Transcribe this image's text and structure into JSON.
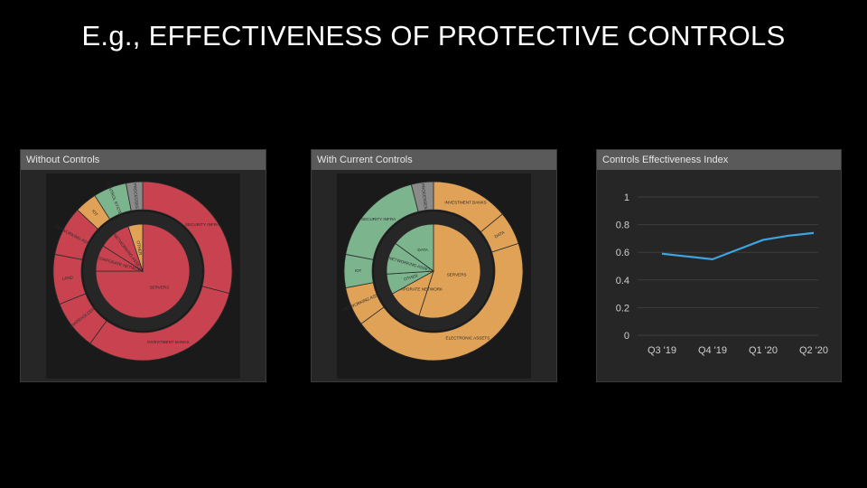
{
  "slide": {
    "title": "E.g., EFFECTIVENESS OF PROTECTIVE CONTROLS"
  },
  "colors": {
    "red": "#c8434f",
    "orange": "#e0a257",
    "green": "#7cb58d",
    "gray": "#8a8a8a",
    "line": "#3ea3e0"
  },
  "panels": [
    {
      "header": "Without Controls"
    },
    {
      "header": "With Current Controls"
    },
    {
      "header": "Controls Effectiveness Index"
    }
  ],
  "chart_data": [
    {
      "type": "pie",
      "title": "Without Controls",
      "outer": [
        {
          "label": "SECURITY INFRA",
          "value": 29,
          "color": "red"
        },
        {
          "label": "INVESTMENT BANKS",
          "value": 31,
          "color": "red"
        },
        {
          "label": "SHAREHOLDERS",
          "value": 9,
          "color": "red"
        },
        {
          "label": "LAND",
          "value": 9,
          "color": "red"
        },
        {
          "label": "NETWORKING ASSETS",
          "value": 9,
          "color": "red"
        },
        {
          "label": "IOT",
          "value": 4,
          "color": "orange"
        },
        {
          "label": "CONTROL SYSTEMS",
          "value": 6,
          "color": "green"
        },
        {
          "label": "PROCESSES",
          "value": 3,
          "color": "gray"
        }
      ],
      "inner": [
        {
          "label": "SERVERS",
          "value": 75,
          "color": "red"
        },
        {
          "label": "CORPORATE NETWORK",
          "value": 9,
          "color": "red"
        },
        {
          "label": "NETWORKING ASSETS",
          "value": 11,
          "color": "red"
        },
        {
          "label": "OTHER",
          "value": 5,
          "color": "orange"
        }
      ]
    },
    {
      "type": "pie",
      "title": "With Current Controls",
      "outer": [
        {
          "label": "INVESTMENT BANKS",
          "value": 14,
          "color": "orange"
        },
        {
          "label": "DATA",
          "value": 6,
          "color": "orange"
        },
        {
          "label": "ELECTRONIC ASSETS",
          "value": 45,
          "color": "orange"
        },
        {
          "label": "NETWORKING ASSETS",
          "value": 7,
          "color": "orange"
        },
        {
          "label": "IOT",
          "value": 6,
          "color": "green"
        },
        {
          "label": "SECURITY INFRA",
          "value": 18,
          "color": "green"
        },
        {
          "label": "PROCESSES",
          "value": 4,
          "color": "gray"
        }
      ],
      "inner": [
        {
          "label": "SERVERS",
          "value": 55,
          "color": "orange"
        },
        {
          "label": "CORPORATE NETWORK",
          "value": 12,
          "color": "orange"
        },
        {
          "label": "OTHER",
          "value": 7,
          "color": "green"
        },
        {
          "label": "NETWORKING ASSETS",
          "value": 11,
          "color": "green"
        },
        {
          "label": "DATA",
          "value": 15,
          "color": "green"
        }
      ]
    },
    {
      "type": "line",
      "title": "Controls Effectiveness Index",
      "categories": [
        "Q3 '19",
        "Q4 '19",
        "Q1 '20",
        "Q2 '20"
      ],
      "x_numeric": [
        0,
        0.5,
        1,
        1.5,
        2,
        2.5,
        3
      ],
      "y": [
        0.59,
        0.57,
        0.55,
        0.62,
        0.69,
        0.72,
        0.74
      ],
      "yticks": [
        "1",
        "0.8",
        "0.6",
        "0.4",
        "0.2",
        "0"
      ],
      "ylim": [
        0,
        1
      ],
      "grid": true
    }
  ]
}
